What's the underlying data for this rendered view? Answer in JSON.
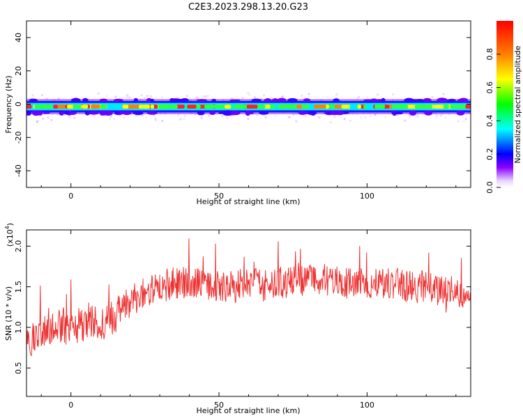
{
  "title": "C2E3.2023.298.13.20.G23",
  "colorbar": {
    "label": "Normalized spectral amplitude",
    "ticks": [
      "0.0",
      "0.2",
      "0.4",
      "0.6",
      "0.8"
    ],
    "tick_values": [
      0.0,
      0.2,
      0.4,
      0.6,
      0.8
    ],
    "range": [
      0,
      1
    ],
    "colormap": [
      "#ffffff",
      "#8b00ff",
      "#0000ff",
      "#00ffff",
      "#00ff00",
      "#ffff00",
      "#ff8000",
      "#ff0000"
    ]
  },
  "top_panel": {
    "ylabel": "Frequency (Hz)",
    "xlabel": "Height of straight line (km)",
    "yticks": [
      "40",
      "20",
      "0",
      "-20",
      "-40"
    ],
    "ytick_values": [
      40,
      20,
      0,
      -20,
      -40
    ],
    "xticks": [
      "0",
      "50",
      "100"
    ],
    "xtick_values": [
      0,
      50,
      100
    ]
  },
  "bottom_panel": {
    "ylabel": "SNR (10 * v/v)",
    "multiplier": "(x10",
    "multiplier_exp": "4",
    "multiplier_close": ")",
    "xlabel": "Height of straight line (km)",
    "yticks": [
      "2.0",
      "1.5",
      "1.0",
      "0.5"
    ],
    "ytick_values": [
      2.0,
      1.5,
      1.0,
      0.5
    ],
    "xticks": [
      "0",
      "50",
      "100"
    ],
    "xtick_values": [
      0,
      50,
      100
    ]
  },
  "chart_data": [
    {
      "type": "heatmap",
      "title": "C2E3.2023.298.13.20.G23",
      "xlabel": "Height of straight line (km)",
      "ylabel": "Frequency (Hz)",
      "xlim": [
        -15,
        135
      ],
      "ylim": [
        -50,
        50
      ],
      "colorbar_label": "Normalized spectral amplitude",
      "colorbar_range": [
        0,
        1
      ],
      "description_band": {
        "center_hz": -1.5,
        "core_halfwidth_hz": 2,
        "outer_halfwidth_hz": 6
      }
    },
    {
      "type": "line",
      "xlabel": "Height of straight line (km)",
      "ylabel": "SNR (10 * v/v)",
      "y_multiplier": "x10^4",
      "xlim": [
        -15,
        135
      ],
      "ylim": [
        0.15,
        2.2
      ],
      "color": "#ee3333",
      "x": [
        -15,
        -10,
        -5,
        0,
        5,
        10,
        15,
        20,
        25,
        30,
        35,
        40,
        45,
        50,
        55,
        60,
        65,
        70,
        75,
        80,
        85,
        90,
        95,
        100,
        105,
        110,
        115,
        120,
        125,
        130,
        135
      ],
      "y": [
        0.85,
        0.9,
        1.0,
        1.0,
        1.05,
        1.05,
        1.15,
        1.3,
        1.45,
        1.5,
        1.55,
        1.55,
        1.55,
        1.5,
        1.5,
        1.55,
        1.5,
        1.55,
        1.55,
        1.6,
        1.6,
        1.55,
        1.55,
        1.55,
        1.55,
        1.55,
        1.5,
        1.5,
        1.45,
        1.45,
        1.4
      ]
    }
  ]
}
